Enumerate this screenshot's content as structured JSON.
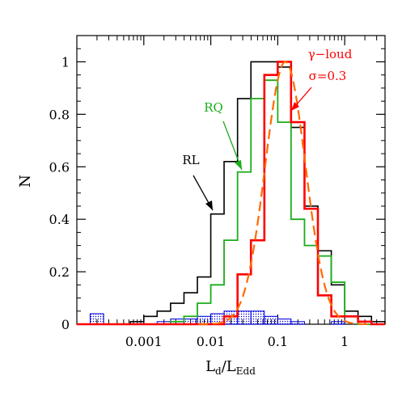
{
  "chart_data": {
    "type": "histogram",
    "xlabel": "L_d/L_Edd",
    "xlabel_main": "L",
    "xlabel_sub1": "d",
    "xlabel_sep": "/L",
    "xlabel_sub2": "Edd",
    "ylabel": "N",
    "xscale": "log",
    "xlim": [
      0.0001,
      4.0
    ],
    "ylim": [
      0,
      1.1
    ],
    "xticks": [
      0.001,
      0.01,
      0.1,
      1
    ],
    "xtick_labels": [
      "0.001",
      "0.01",
      "0.1",
      "1"
    ],
    "yticks": [
      0,
      0.2,
      0.4,
      0.6,
      0.8,
      1
    ],
    "ytick_labels": [
      "0",
      "0.2",
      "0.4",
      "0.6",
      "0.8",
      "1"
    ],
    "bin_edges": [
      0.0001,
      0.000158,
      0.000251,
      0.000398,
      0.000631,
      0.001,
      0.00158,
      0.00251,
      0.00398,
      0.00631,
      0.01,
      0.0158,
      0.0251,
      0.0398,
      0.0631,
      0.1,
      0.158,
      0.251,
      0.398,
      0.631,
      1.0,
      1.58,
      2.51,
      3.98
    ],
    "series": [
      {
        "name": "RL",
        "color": "#000000",
        "values": [
          0,
          0,
          0,
          0,
          0.01,
          0.03,
          0.05,
          0.08,
          0.12,
          0.18,
          0.42,
          0.62,
          0.86,
          1.0,
          1.0,
          0.98,
          0.75,
          0.45,
          0.28,
          0.15,
          0.05,
          0.03,
          0.01
        ]
      },
      {
        "name": "RQ",
        "color": "#1aad1a",
        "values": [
          0,
          0,
          0,
          0,
          0,
          0,
          0,
          0.01,
          0.03,
          0.08,
          0.15,
          0.32,
          0.58,
          0.86,
          0.93,
          0.77,
          0.4,
          0.3,
          0.26,
          0.16,
          0.03,
          0,
          0
        ]
      },
      {
        "name": "γ-loud",
        "color": "#ff0000",
        "values": [
          0,
          0,
          0,
          0,
          0,
          0,
          0,
          0,
          0,
          0,
          0,
          0.03,
          0.19,
          0.32,
          0.95,
          1.0,
          0.77,
          0.44,
          0.11,
          0.03,
          0.03,
          0.01,
          0
        ]
      },
      {
        "name": "blue",
        "color": "#0000dd",
        "values": [
          0,
          0.04,
          0,
          0,
          0.01,
          0,
          0.01,
          0.02,
          0.02,
          0.03,
          0.04,
          0.05,
          0.05,
          0.05,
          0.03,
          0.02,
          0.01,
          0,
          0,
          0.01,
          0,
          0,
          0
        ]
      }
    ],
    "fit_curve": {
      "type": "lognormal",
      "color": "#ff6a00",
      "peak_x": 0.13,
      "sigma": 0.3,
      "amplitude": 1.0
    },
    "annotations": {
      "rl_label": "RL",
      "rq_label": "RQ",
      "gamma_label": "γ−loud",
      "sigma_label": "σ=0.3"
    }
  }
}
